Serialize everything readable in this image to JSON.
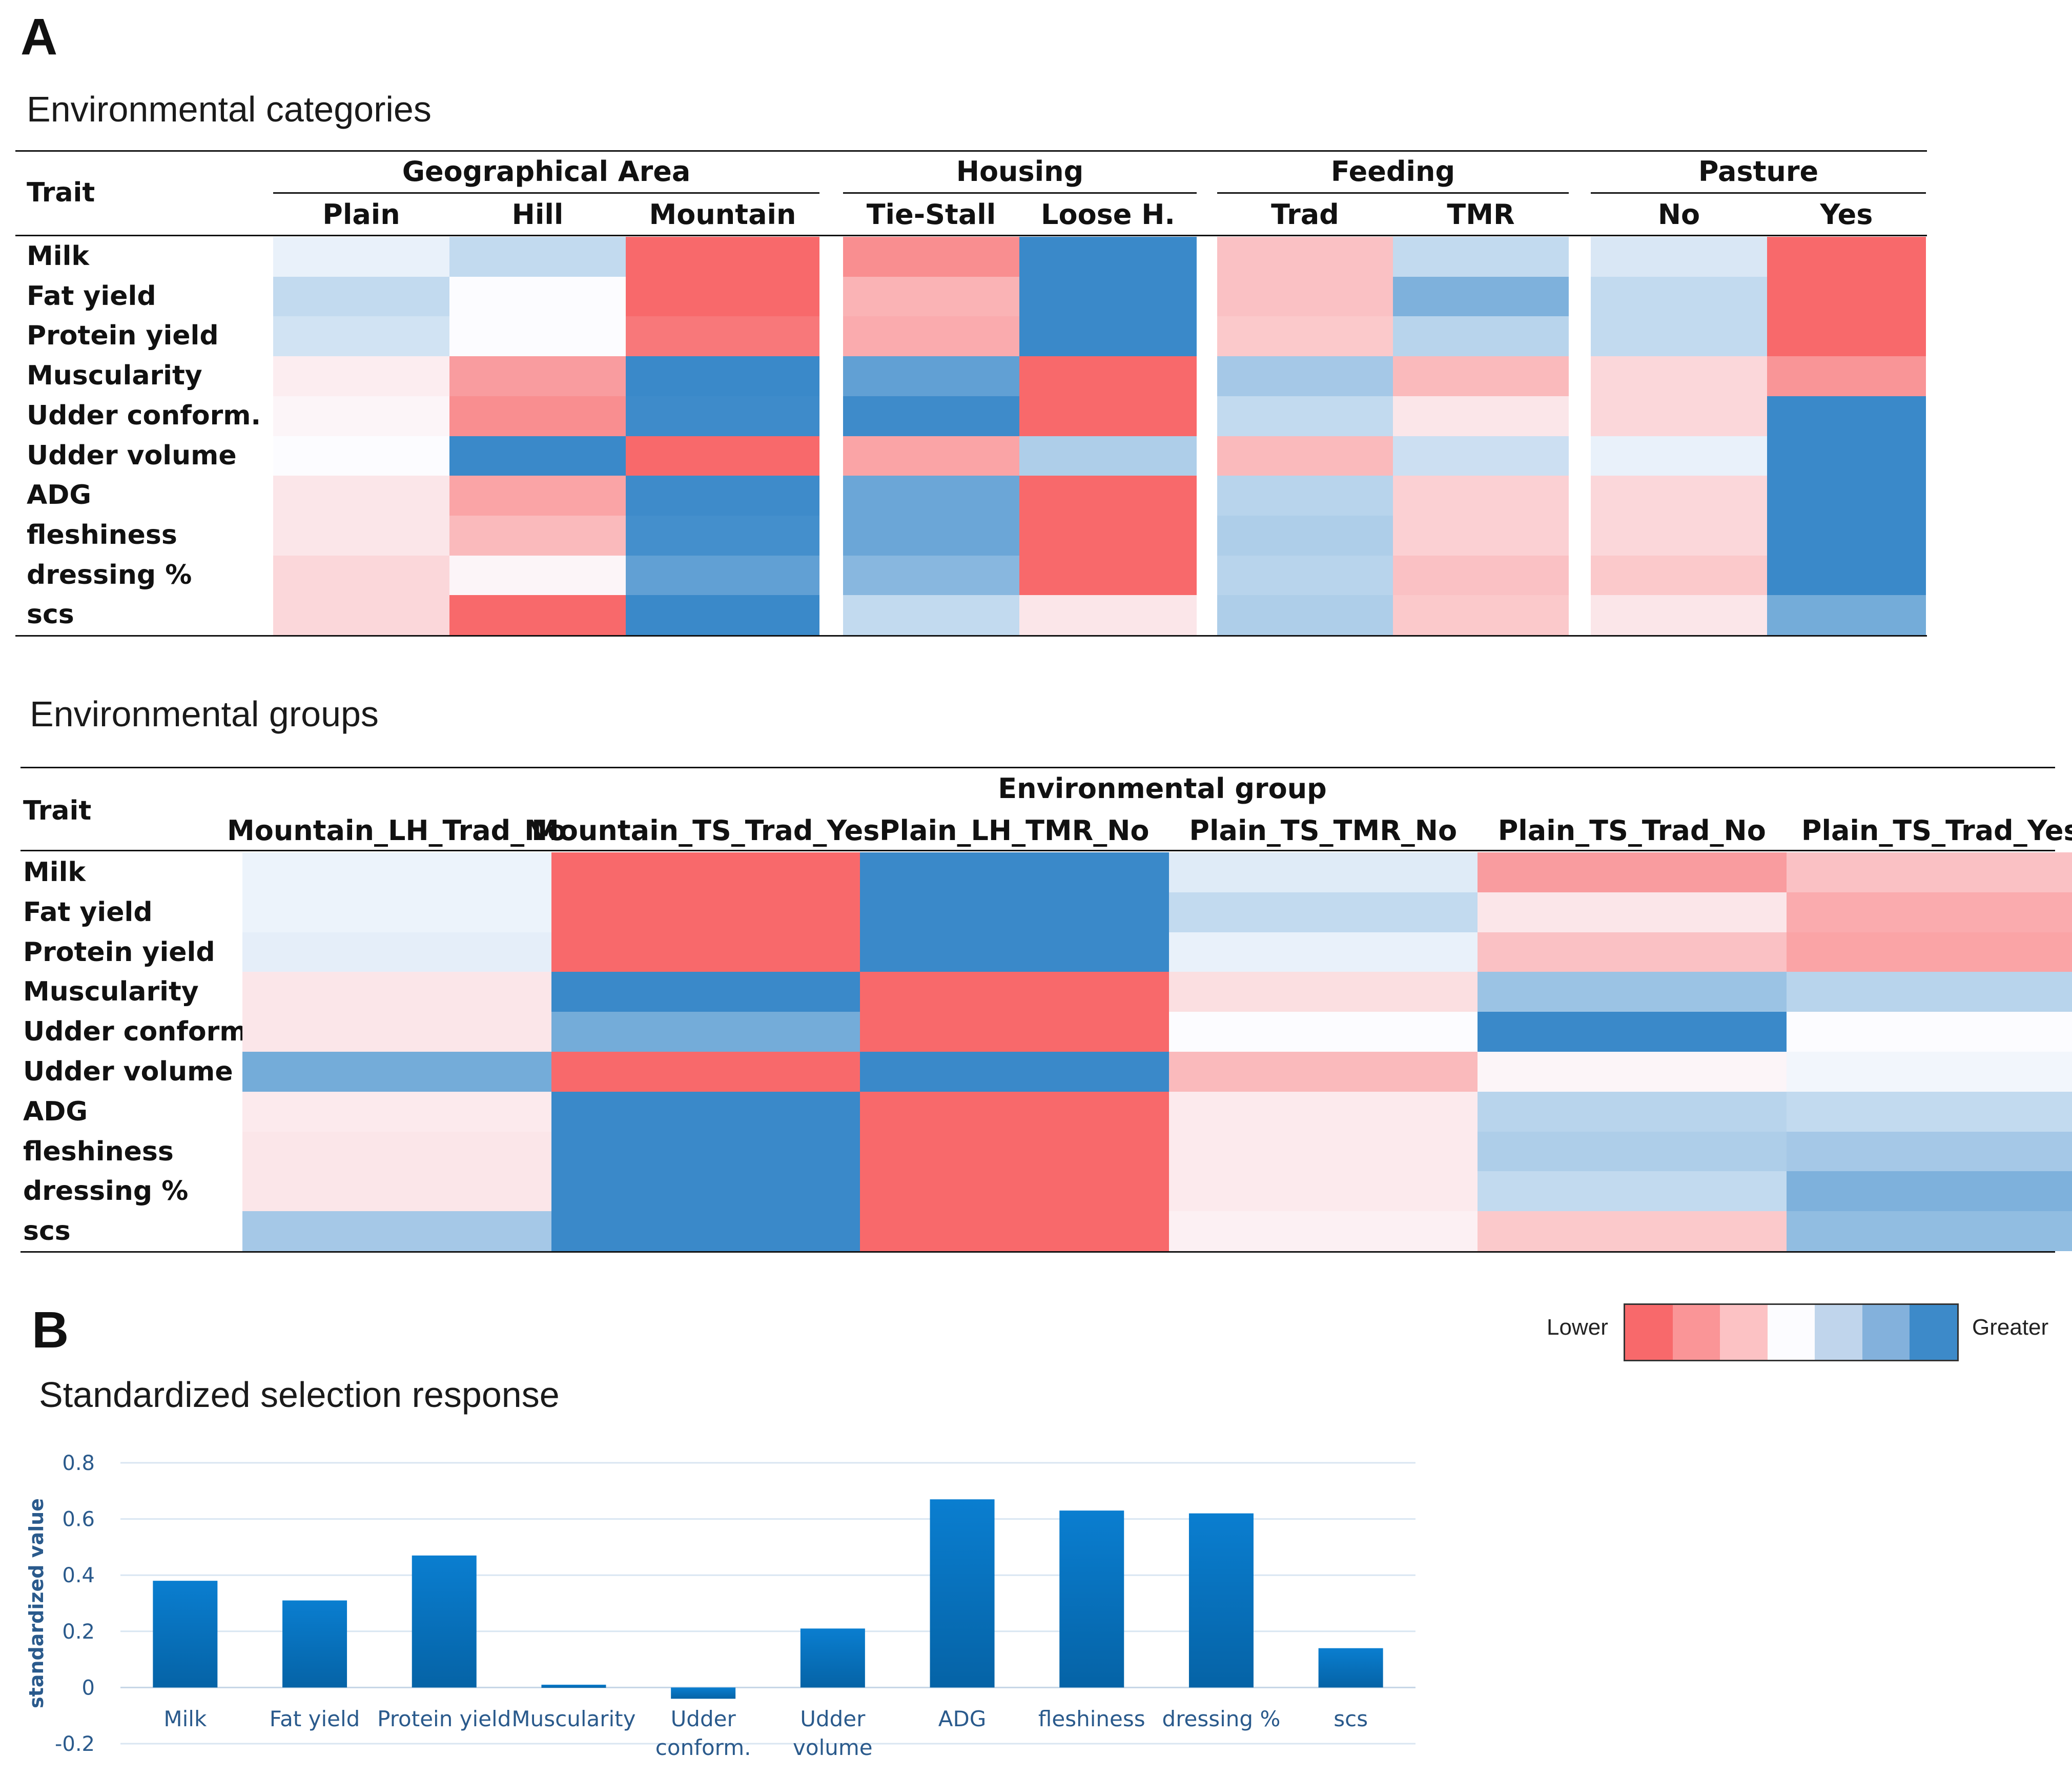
{
  "panels": {
    "a": "A",
    "b": "B"
  },
  "heatmap_categories": {
    "title": "Environmental categories",
    "trait_header": "Trait",
    "groups": [
      {
        "name": "Geographical Area",
        "columns": [
          "Plain",
          "Hill",
          "Mountain"
        ]
      },
      {
        "name": "Housing",
        "columns": [
          "Tie-Stall",
          "Loose H."
        ]
      },
      {
        "name": "Feeding",
        "columns": [
          "Trad",
          "TMR"
        ]
      },
      {
        "name": "Pasture",
        "columns": [
          "No",
          "Yes"
        ]
      }
    ],
    "rows": [
      "Milk",
      "Fat yield",
      "Protein yield",
      "Muscularity",
      "Udder conform.",
      "Udder volume",
      "ADG",
      "fleshiness",
      "dressing %",
      "scs"
    ],
    "values": [
      [
        0.1,
        0.3,
        -1.0,
        -0.75,
        1.0,
        -0.4,
        0.3,
        0.18,
        -1.0
      ],
      [
        0.3,
        0.0,
        -1.0,
        -0.5,
        1.0,
        -0.4,
        0.65,
        0.3,
        -1.0
      ],
      [
        0.22,
        0.0,
        -0.9,
        -0.55,
        1.0,
        -0.35,
        0.35,
        0.3,
        -1.0
      ],
      [
        -0.1,
        -0.65,
        1.0,
        0.8,
        -1.0,
        0.45,
        -0.45,
        -0.25,
        -0.7
      ],
      [
        -0.05,
        -0.75,
        0.98,
        0.98,
        -1.0,
        0.3,
        -0.15,
        -0.25,
        1.0
      ],
      [
        0.0,
        1.0,
        -1.0,
        -0.6,
        0.4,
        -0.45,
        0.25,
        0.1,
        1.0
      ],
      [
        -0.15,
        -0.6,
        0.98,
        0.75,
        -1.0,
        0.35,
        -0.3,
        -0.25,
        1.0
      ],
      [
        -0.15,
        -0.45,
        0.95,
        0.75,
        -1.0,
        0.4,
        -0.3,
        -0.25,
        1.0
      ],
      [
        -0.25,
        -0.05,
        0.8,
        0.6,
        -1.0,
        0.35,
        -0.4,
        -0.35,
        1.0
      ],
      [
        -0.25,
        -1.0,
        1.0,
        0.3,
        -0.15,
        0.4,
        -0.35,
        -0.15,
        0.7
      ]
    ]
  },
  "heatmap_groups": {
    "title": "Environmental groups",
    "trait_header": "Trait",
    "group_header": "Environmental group",
    "columns": [
      "Mountain_LH_Trad_No",
      "Mountain_TS_Trad_Yes",
      "Plain_LH_TMR_No",
      "Plain_TS_TMR_No",
      "Plain_TS_Trad_No",
      "Plain_TS_Trad_Yes"
    ],
    "rows": [
      "Milk",
      "Fat yield",
      "Protein yield",
      "Muscularity",
      "Udder conform.",
      "Udder volume",
      "ADG",
      "fleshiness",
      "dressing %",
      "scs"
    ],
    "values": [
      [
        0.08,
        -1.0,
        1.0,
        0.15,
        -0.65,
        -0.4
      ],
      [
        0.08,
        -1.0,
        1.0,
        0.3,
        -0.15,
        -0.55
      ],
      [
        0.12,
        -1.0,
        1.0,
        0.1,
        -0.4,
        -0.6
      ],
      [
        -0.15,
        1.0,
        -1.0,
        -0.2,
        0.5,
        0.35
      ],
      [
        -0.15,
        0.7,
        -1.0,
        0.0,
        1.0,
        0.0
      ],
      [
        0.7,
        -1.0,
        1.0,
        -0.45,
        -0.05,
        0.05
      ],
      [
        -0.12,
        1.0,
        -1.0,
        -0.12,
        0.35,
        0.3
      ],
      [
        -0.15,
        1.0,
        -1.0,
        -0.12,
        0.4,
        0.45
      ],
      [
        -0.15,
        1.0,
        -1.0,
        -0.12,
        0.3,
        0.65
      ],
      [
        0.45,
        1.0,
        -1.0,
        -0.08,
        -0.35,
        0.55
      ]
    ]
  },
  "legend": {
    "low_label": "Lower",
    "high_label": "Greater",
    "steps": [
      "#f8696b",
      "#fa9597",
      "#fcc2c4",
      "#fcfcff",
      "#c0d5ec",
      "#83b1dc",
      "#3d8ac9"
    ]
  },
  "colors": {
    "low": "#f8696b",
    "mid": "#fcfcff",
    "high": "#3a89c9",
    "bar_top": "#0a7ed0",
    "bar_bottom": "#0563a6",
    "axis_text": "#2a5a8c",
    "grid": "#d9e6f2"
  },
  "chart_data": {
    "type": "bar",
    "title": "Standardized selection response",
    "ylabel": "standardized value",
    "xlabel": "",
    "categories": [
      "Milk",
      "Fat yield",
      "Protein yield",
      "Muscularity",
      "Udder conform.",
      "Udder volume",
      "ADG",
      "fleshiness",
      "dressing %",
      "scs"
    ],
    "category_lines": [
      [
        "Milk"
      ],
      [
        "Fat yield"
      ],
      [
        "Protein yield"
      ],
      [
        "Muscularity"
      ],
      [
        "Udder",
        "conform."
      ],
      [
        "Udder",
        "volume"
      ],
      [
        "ADG"
      ],
      [
        "fleshiness"
      ],
      [
        "dressing %"
      ],
      [
        "scs"
      ]
    ],
    "values": [
      0.38,
      0.31,
      0.47,
      0.01,
      -0.04,
      0.21,
      0.67,
      0.63,
      0.62,
      0.14
    ],
    "ylim": [
      -0.2,
      0.8
    ],
    "yticks": [
      -0.2,
      0,
      0.2,
      0.4,
      0.6,
      0.8
    ],
    "ytick_labels": [
      "-0.2",
      "0",
      "0.2",
      "0.4",
      "0.6",
      "0.8"
    ],
    "grid": true
  }
}
